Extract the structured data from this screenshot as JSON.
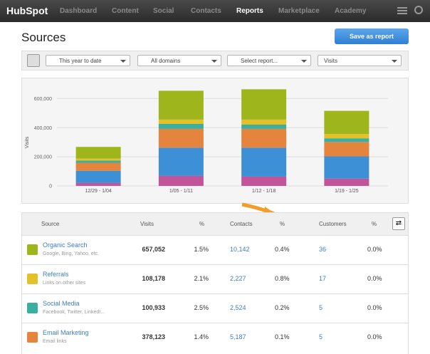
{
  "nav": {
    "logo": "HubSpot",
    "items": [
      "Dashboard",
      "Content",
      "Social",
      "Contacts",
      "Reports",
      "Marketplace",
      "Academy"
    ],
    "active": 4
  },
  "header": {
    "title": "Sources",
    "button": "Save as report"
  },
  "filters": [
    "This year to date",
    "All domains",
    "Select report...",
    "Visits"
  ],
  "chart_data": {
    "type": "stacked_bar",
    "y_label": "Visits",
    "categories": [
      "12/29 - 1/04",
      "1/05 - 1/11",
      "1/12 - 1/18",
      "1/19 - 1/25"
    ],
    "series": [
      {
        "color": "#c2559a",
        "values": [
          20000,
          69000,
          64000,
          50000
        ]
      },
      {
        "color": "#3d8fd6",
        "values": [
          84000,
          194000,
          199000,
          153000
        ]
      },
      {
        "color": "#e5843d",
        "values": [
          55000,
          129000,
          129000,
          99000
        ]
      },
      {
        "color": "#3aaea0",
        "values": [
          15000,
          34000,
          29000,
          25000
        ]
      },
      {
        "color": "#e3c12b",
        "values": [
          14000,
          30000,
          35000,
          30000
        ]
      },
      {
        "color": "#9fb51c",
        "values": [
          80000,
          198000,
          208000,
          159000
        ]
      }
    ],
    "ylim": [
      0,
      700000
    ],
    "yticks": [
      0,
      {
        "value": 200000,
        "label": "200,000"
      },
      {
        "value": 400000,
        "label": "400,000"
      },
      {
        "value": 600000,
        "label": "600,000"
      }
    ],
    "grid": true
  },
  "table": {
    "headers": [
      "Source",
      "Visits",
      "%",
      "Contacts",
      "%",
      "Customers",
      "%"
    ],
    "rows": [
      {
        "name": "Organic Search",
        "desc": "Google, Bing, Yahoo, etc.",
        "icon_color": "#9fb51c",
        "cells": [
          "657,052",
          "1.5%",
          "10,142",
          "0.4%",
          "36",
          "0.0%"
        ]
      },
      {
        "name": "Referrals",
        "desc": "Links on other sites",
        "icon_color": "#e3c12b",
        "cells": [
          "108,178",
          "2.1%",
          "2,227",
          "0.8%",
          "17",
          "0.0%"
        ]
      },
      {
        "name": "Social Media",
        "desc": "Facebook, Twitter, LinkedI...",
        "icon_color": "#3aaea0",
        "cells": [
          "100,933",
          "2.5%",
          "2,524",
          "0.2%",
          "5",
          "0.0%"
        ]
      },
      {
        "name": "Email Marketing",
        "desc": "Email links",
        "icon_color": "#e5843d",
        "cells": [
          "378,123",
          "1.4%",
          "5,187",
          "0.1%",
          "5",
          "0.0%"
        ]
      }
    ]
  }
}
